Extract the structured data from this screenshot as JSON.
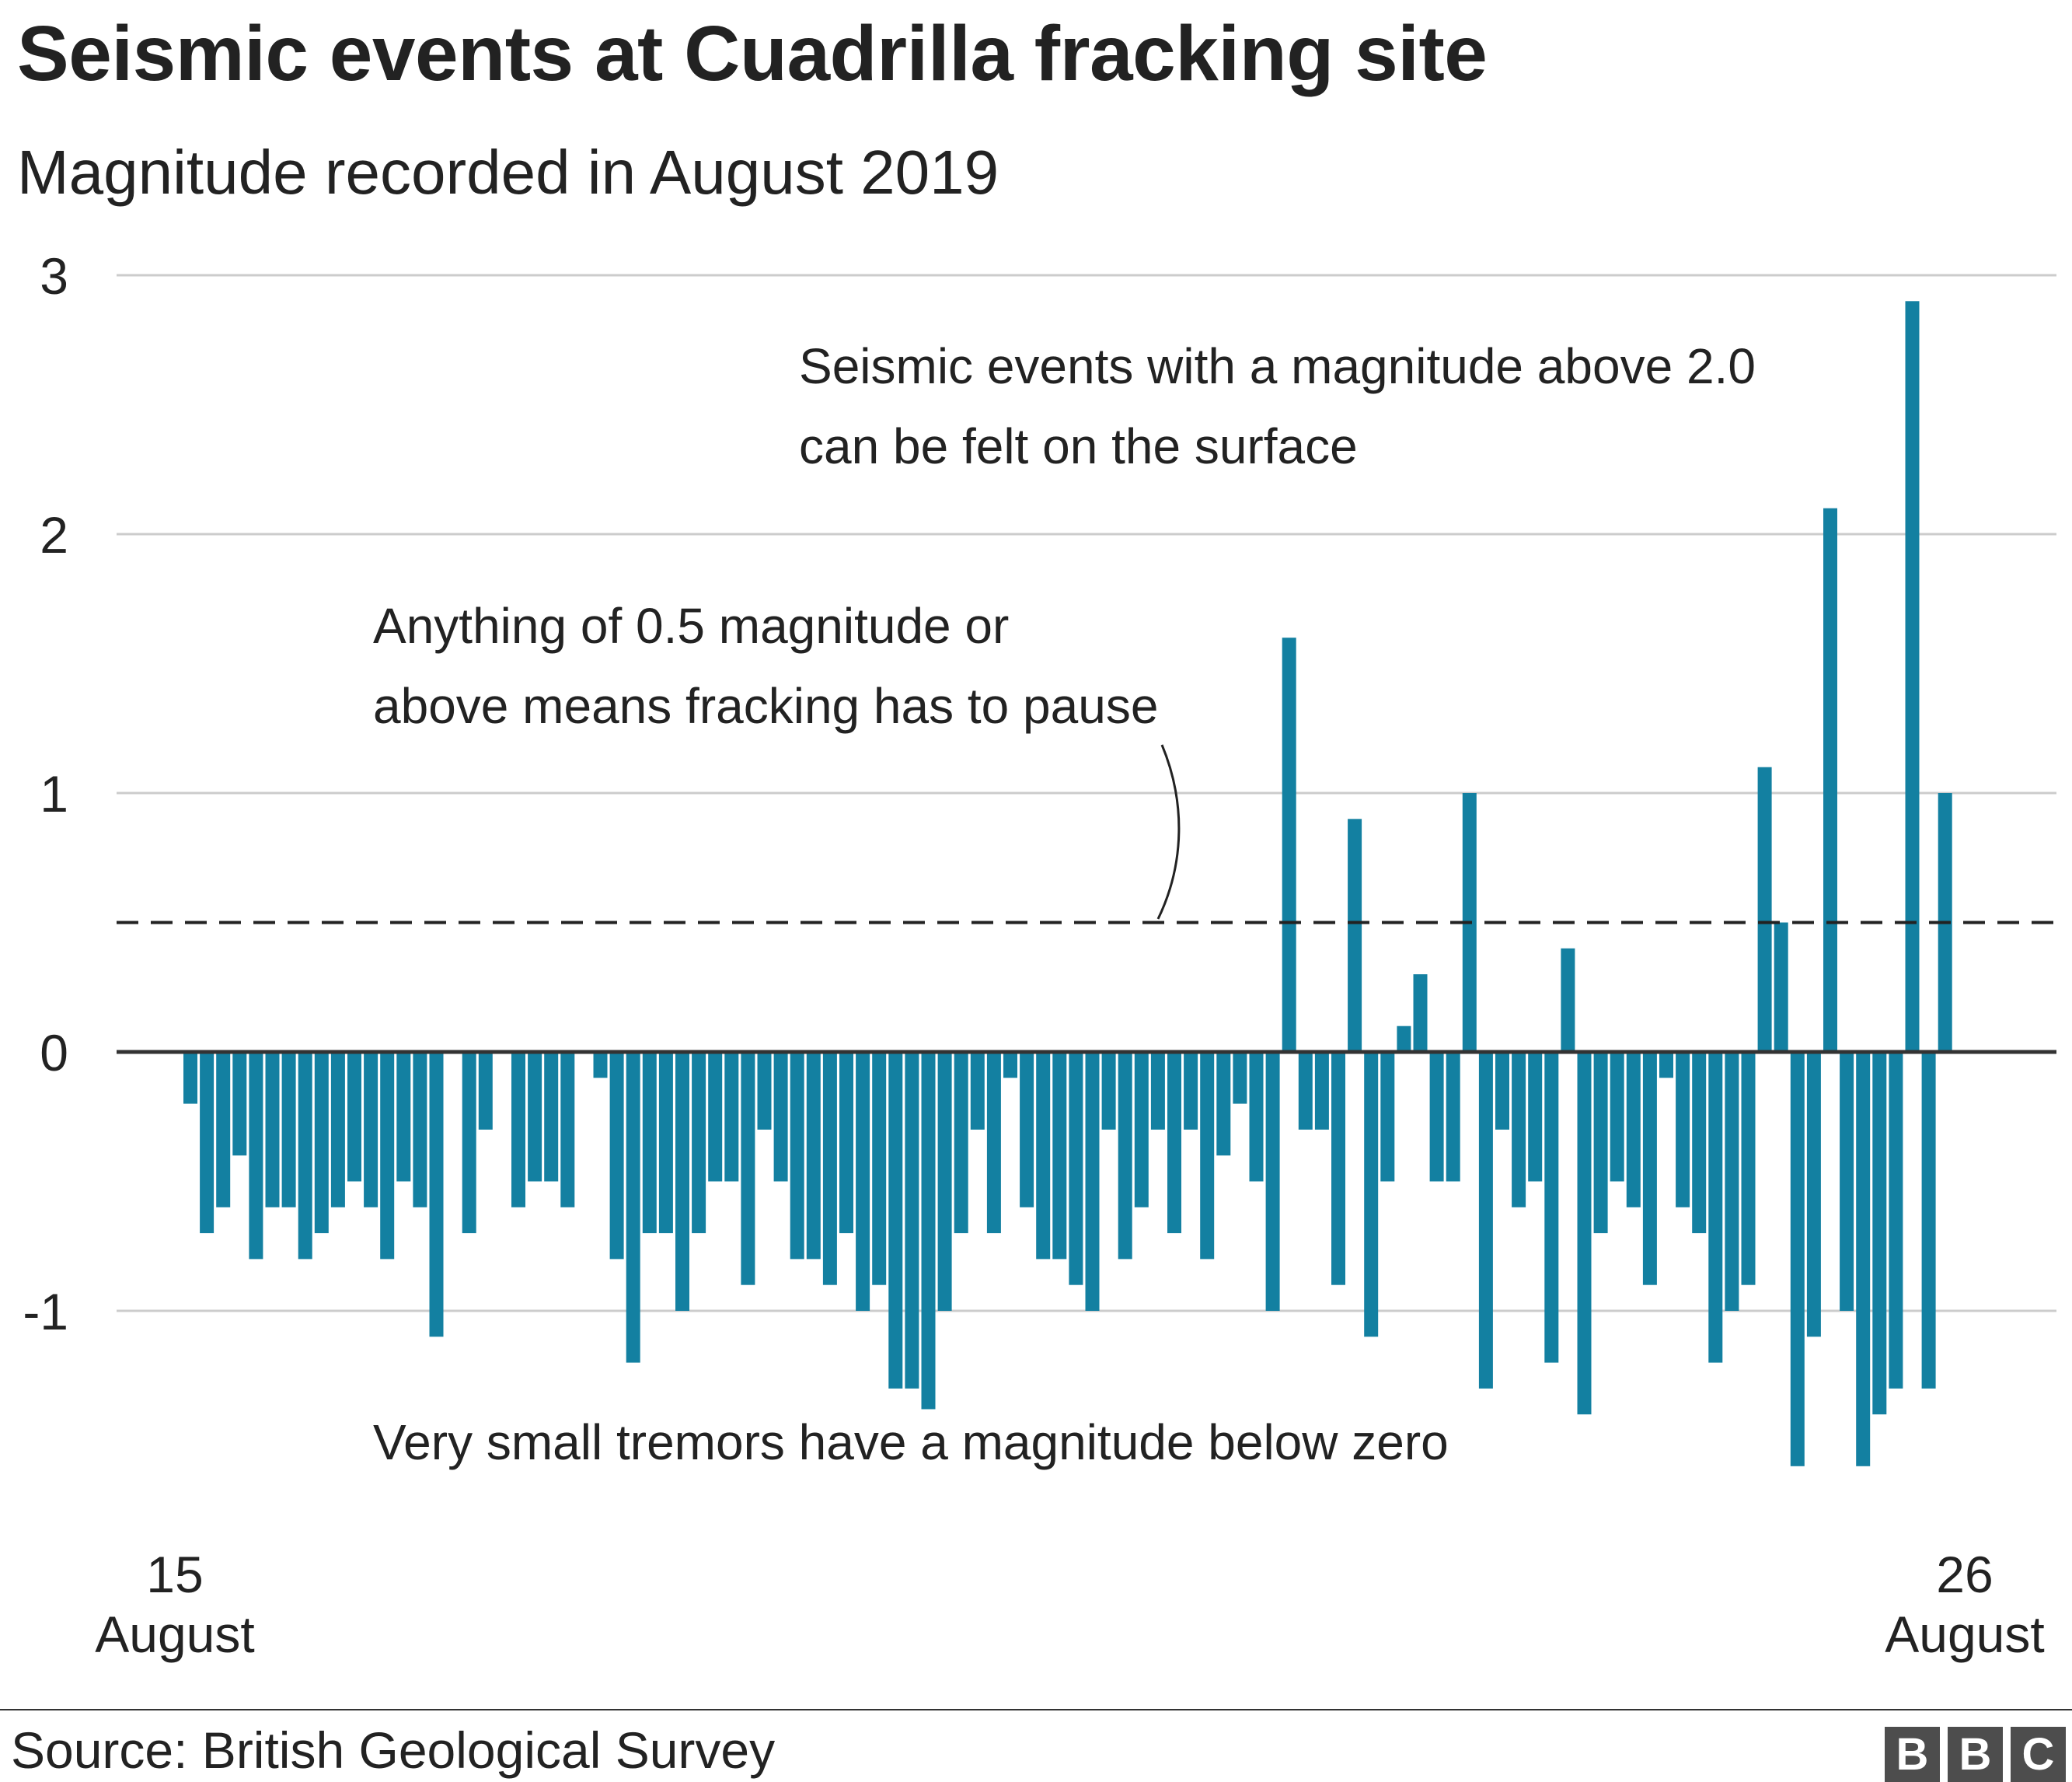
{
  "chart_data": {
    "type": "bar",
    "title": "Seismic events at Cuadrilla fracking site",
    "subtitle": "Magnitude recorded in August 2019",
    "ylim": [
      -1.6,
      3
    ],
    "yticks": [
      3,
      2,
      1,
      0,
      -1
    ],
    "grid": true,
    "threshold": 0.5,
    "x_labels": [
      {
        "day": "15",
        "month": "August"
      },
      {
        "day": "26",
        "month": "August"
      }
    ],
    "values": [
      -0.2,
      -0.7,
      -0.6,
      -0.4,
      -0.8,
      -0.6,
      -0.6,
      -0.8,
      -0.7,
      -0.6,
      -0.5,
      -0.6,
      -0.8,
      -0.5,
      -0.6,
      -1.1,
      null,
      -0.7,
      -0.3,
      null,
      -0.6,
      -0.5,
      -0.5,
      -0.6,
      null,
      -0.1,
      -0.8,
      -1.2,
      -0.7,
      -0.7,
      -1.0,
      -0.7,
      -0.5,
      -0.5,
      -0.9,
      -0.3,
      -0.5,
      -0.8,
      -0.8,
      -0.9,
      -0.7,
      -1.0,
      -0.9,
      -1.3,
      -1.3,
      -1.38,
      -1.0,
      -0.7,
      -0.3,
      -0.7,
      -0.1,
      -0.6,
      -0.8,
      -0.8,
      -0.9,
      -1.0,
      -0.3,
      -0.8,
      -0.6,
      -0.3,
      -0.7,
      -0.3,
      -0.8,
      -0.4,
      -0.2,
      -0.5,
      -1.0,
      1.6,
      -0.3,
      -0.3,
      -0.9,
      0.9,
      -1.1,
      -0.5,
      0.1,
      0.3,
      -0.5,
      -0.5,
      1.0,
      -1.3,
      -0.3,
      -0.6,
      -0.5,
      -1.2,
      0.4,
      -1.4,
      -0.7,
      -0.5,
      -0.6,
      -0.9,
      -0.1,
      -0.6,
      -0.7,
      -1.2,
      -1.0,
      -0.9,
      1.1,
      0.5,
      -1.6,
      -1.1,
      2.1,
      -1.0,
      -1.6,
      -1.4,
      -1.3,
      2.9,
      -1.3,
      1.0
    ],
    "bar_color": "#1380a1",
    "annotations": [
      {
        "lines": [
          "Seismic events with a magnitude above 2.0",
          "can be felt on the surface"
        ]
      },
      {
        "lines": [
          "Anything of 0.5 magnitude or",
          "above means fracking has to pause"
        ]
      },
      {
        "lines": [
          "Very small tremors have a magnitude below zero"
        ]
      }
    ]
  },
  "source": "Source: British Geological Survey",
  "logo": {
    "letters": [
      "B",
      "B",
      "C"
    ]
  },
  "colors": {
    "bar": "#1380a1",
    "text": "#222222",
    "grid": "#cccccc",
    "logo": "#4d4d4d"
  }
}
